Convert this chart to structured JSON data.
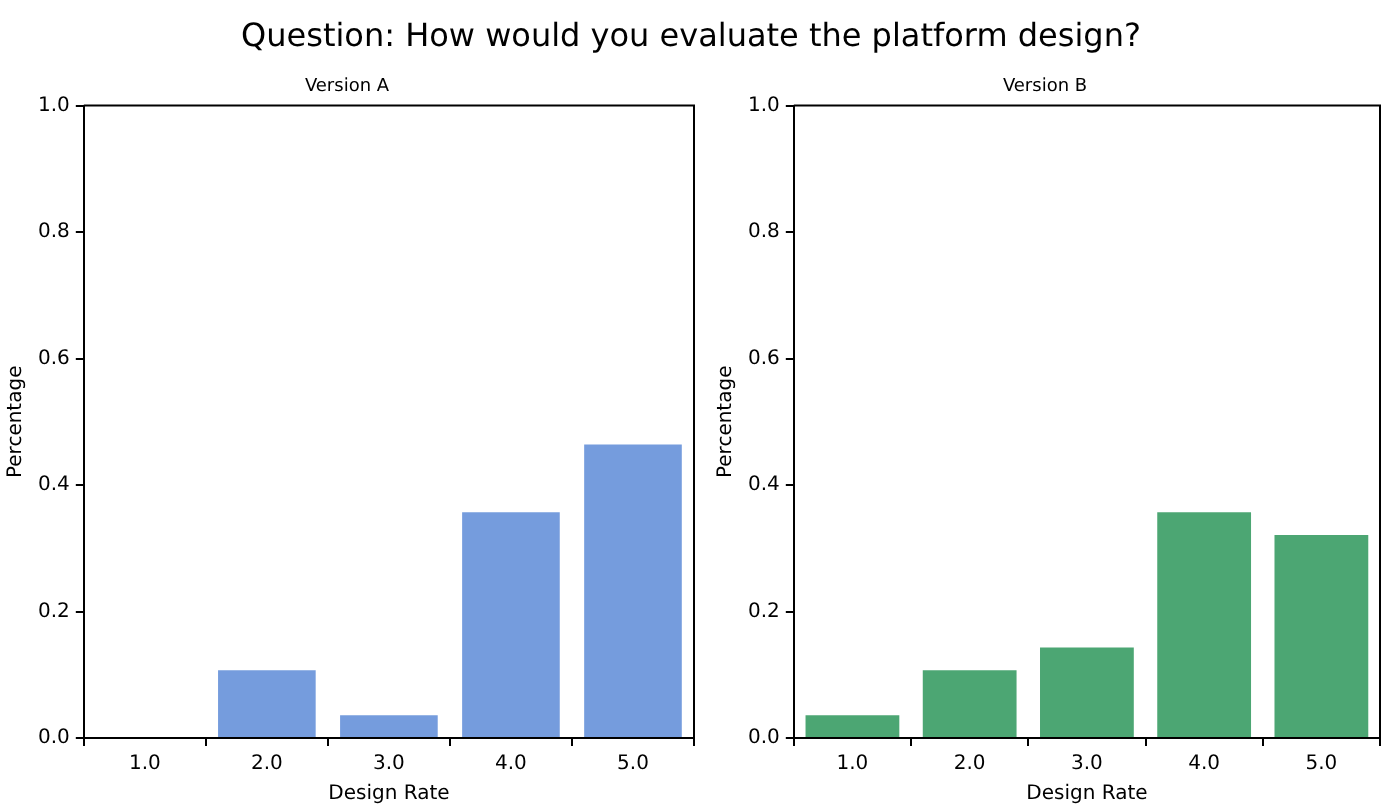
{
  "chart_data": [
    {
      "type": "bar",
      "title": "Question: How would you evaluate the platform design?",
      "subtitle": "Version A",
      "xlabel": "Design Rate",
      "ylabel": "Percentage",
      "categories": [
        "1.0",
        "2.0",
        "3.0",
        "4.0",
        "5.0"
      ],
      "values": [
        0,
        0.107,
        0.036,
        0.357,
        0.464
      ],
      "color": "#759cdd",
      "ylim": [
        0,
        1
      ],
      "yticks": [
        {
          "value": 0,
          "label": "0.0"
        },
        {
          "value": 0.2,
          "label": "0.2"
        },
        {
          "value": 0.4,
          "label": "0.4"
        },
        {
          "value": 0.6,
          "label": "0.6"
        },
        {
          "value": 0.8,
          "label": "0.8"
        },
        {
          "value": 1,
          "label": "1.0"
        }
      ],
      "grid": false
    },
    {
      "type": "bar",
      "subtitle": "Version B",
      "xlabel": "Design Rate",
      "ylabel": "Percentage",
      "categories": [
        "1.0",
        "2.0",
        "3.0",
        "4.0",
        "5.0"
      ],
      "values": [
        0.036,
        0.107,
        0.143,
        0.357,
        0.321
      ],
      "color": "#4ca673",
      "ylim": [
        0,
        1
      ],
      "yticks": [
        {
          "value": 0,
          "label": "0.0"
        },
        {
          "value": 0.2,
          "label": "0.2"
        },
        {
          "value": 0.4,
          "label": "0.4"
        },
        {
          "value": 0.6,
          "label": "0.6"
        },
        {
          "value": 0.8,
          "label": "0.8"
        },
        {
          "value": 1,
          "label": "1.0"
        }
      ],
      "grid": false
    }
  ]
}
